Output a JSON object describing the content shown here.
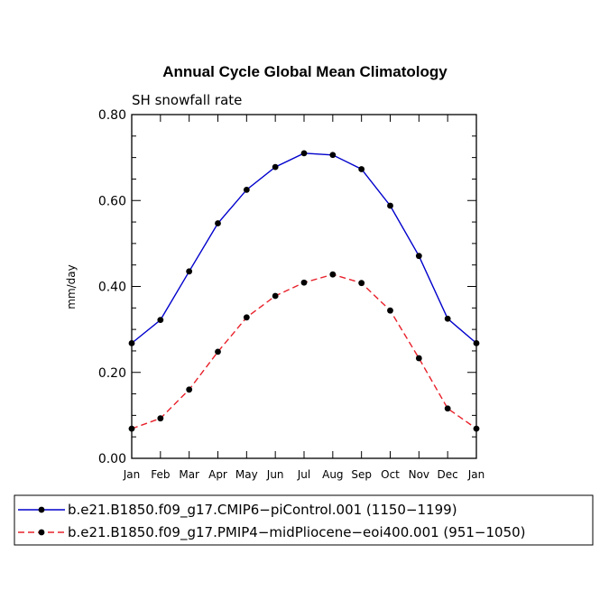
{
  "chart_data": {
    "type": "line",
    "title": "Annual Cycle Global Mean Climatology",
    "subtitle": "SH snowfall rate",
    "xlabel": "",
    "ylabel": "mm/day",
    "ylim": [
      0,
      0.8
    ],
    "yticks": [
      {
        "value": 0.0,
        "label": "0.00"
      },
      {
        "value": 0.2,
        "label": "0.20"
      },
      {
        "value": 0.4,
        "label": "0.40"
      },
      {
        "value": 0.6,
        "label": "0.60"
      },
      {
        "value": 0.8,
        "label": "0.80"
      }
    ],
    "categories": [
      "Jan",
      "Feb",
      "Mar",
      "Apr",
      "May",
      "Jun",
      "Jul",
      "Aug",
      "Sep",
      "Oct",
      "Nov",
      "Dec",
      "Jan"
    ],
    "grid": false,
    "legend_position": "bottom",
    "series": [
      {
        "name": "b.e21.B1850.f09_g17.CMIP6−piControl.001 (1150−1199)",
        "color": "#0000cc",
        "dash": "solid",
        "values": [
          0.268,
          0.322,
          0.435,
          0.547,
          0.625,
          0.678,
          0.71,
          0.706,
          0.673,
          0.588,
          0.471,
          0.325,
          0.268
        ]
      },
      {
        "name": "b.e21.B1850.f09_g17.PMIP4−midPliocene−eoi400.001 (951−1050)",
        "color": "#e8202a",
        "dash": "dashed",
        "values": [
          0.069,
          0.093,
          0.16,
          0.248,
          0.328,
          0.378,
          0.409,
          0.428,
          0.408,
          0.344,
          0.233,
          0.116,
          0.069
        ]
      }
    ]
  }
}
